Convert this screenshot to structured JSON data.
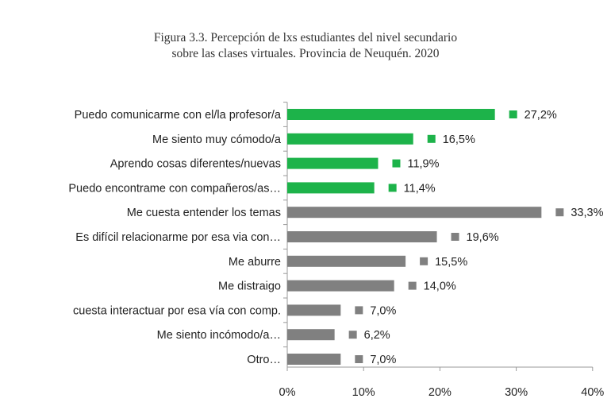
{
  "chart_data": {
    "type": "bar",
    "orientation": "horizontal",
    "title_lines": [
      "Figura 3.3. Percepción de lxs estudiantes del nivel secundario",
      "sobre las clases virtuales. Provincia de Neuquén. 2020"
    ],
    "categories": [
      "Puedo comunicarme con el/la profesor/a",
      "Me siento muy cómodo/a",
      "Aprendo cosas diferentes/nuevas",
      "Puedo encontrame con compañeros/as…",
      "Me cuesta entender los temas",
      "Es difícil relacionarme por esa via con…",
      "Me aburre",
      "Me distraigo",
      "cuesta interactuar por esa vía con comp.",
      "Me siento incómodo/a…",
      "Otro…"
    ],
    "values": [
      27.2,
      16.5,
      11.9,
      11.4,
      33.3,
      19.6,
      15.5,
      14.0,
      7.0,
      6.2,
      7.0
    ],
    "value_labels": [
      "27,2%",
      "16,5%",
      "11,9%",
      "11,4%",
      "33,3%",
      "19,6%",
      "15,5%",
      "14,0%",
      "7,0%",
      "6,2%",
      "7,0%"
    ],
    "groups": [
      "positive",
      "positive",
      "positive",
      "positive",
      "negative",
      "negative",
      "negative",
      "negative",
      "negative",
      "negative",
      "negative"
    ],
    "colors": {
      "positive": "#1db34a",
      "negative": "#808080"
    },
    "xlim": [
      0,
      40
    ],
    "xticks": [
      0,
      10,
      20,
      30,
      40
    ],
    "xtick_labels": [
      "0%",
      "10%",
      "20%",
      "30%",
      "40%"
    ],
    "xlabel": "",
    "ylabel": "",
    "grid": false
  }
}
